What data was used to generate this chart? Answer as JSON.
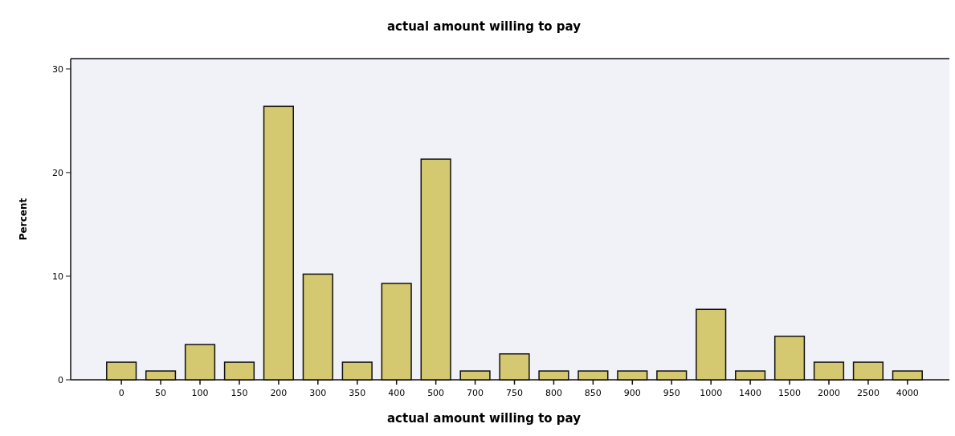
{
  "chart_data": {
    "type": "bar",
    "title": "actual amount willing to pay",
    "xlabel": "actual amount willing to pay",
    "ylabel": "Percent",
    "categories": [
      "0",
      "50",
      "100",
      "150",
      "200",
      "300",
      "350",
      "400",
      "500",
      "700",
      "750",
      "800",
      "850",
      "900",
      "950",
      "1000",
      "1400",
      "1500",
      "2000",
      "2500",
      "4000"
    ],
    "values": [
      1.7,
      0.85,
      3.4,
      1.7,
      26.4,
      10.2,
      1.7,
      9.3,
      21.3,
      0.85,
      2.5,
      0.85,
      0.85,
      0.85,
      0.85,
      6.8,
      0.85,
      4.2,
      1.7,
      1.7,
      0.85
    ],
    "color": "#d4c870",
    "ylim": [
      0,
      31
    ],
    "yticks": [
      0,
      10,
      20,
      30
    ]
  }
}
